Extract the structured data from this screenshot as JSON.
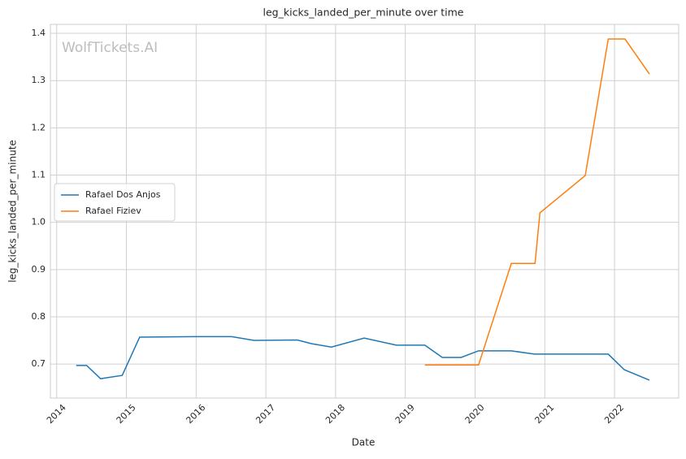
{
  "chart_data": {
    "type": "line",
    "title": "leg_kicks_landed_per_minute over time",
    "x_label": "Date",
    "y_label": "leg_kicks_landed_per_minute",
    "watermark": "WolfTickets.AI",
    "xlim": [
      2013.91,
      2022.92
    ],
    "xticks": [
      2014,
      2015,
      2016,
      2017,
      2018,
      2019,
      2020,
      2021,
      2022
    ],
    "ylim": [
      0.628,
      1.419
    ],
    "yticks": [
      0.7,
      0.8,
      0.9,
      {
        "value": 1.0,
        "label": "1.0"
      },
      1.1,
      1.2,
      1.3,
      1.4
    ],
    "grid": true,
    "legend": "center left",
    "series": [
      {
        "name": "Rafael Dos Anjos",
        "color": "#1f77b4",
        "x": [
          2014.28,
          2014.43,
          2014.63,
          2014.94,
          2015.19,
          2015.98,
          2016.51,
          2016.83,
          2017.45,
          2017.66,
          2017.94,
          2018.41,
          2018.87,
          2019.28,
          2019.53,
          2019.8,
          2020.05,
          2020.52,
          2020.85,
          2021.91,
          2022.14,
          2022.5
        ],
        "values": [
          0.697,
          0.697,
          0.669,
          0.676,
          0.757,
          0.758,
          0.758,
          0.75,
          0.751,
          0.743,
          0.736,
          0.755,
          0.74,
          0.74,
          0.714,
          0.714,
          0.728,
          0.728,
          0.721,
          0.721,
          0.688,
          0.666
        ]
      },
      {
        "name": "Rafael Fiziev",
        "color": "#ff7f0e",
        "x": [
          2019.28,
          2020.05,
          2020.52,
          2020.86,
          2020.93,
          2021.58,
          2021.91,
          2022.15,
          2022.5
        ],
        "values": [
          0.698,
          0.698,
          0.913,
          0.913,
          1.02,
          1.099,
          1.388,
          1.388,
          1.314
        ]
      }
    ]
  }
}
